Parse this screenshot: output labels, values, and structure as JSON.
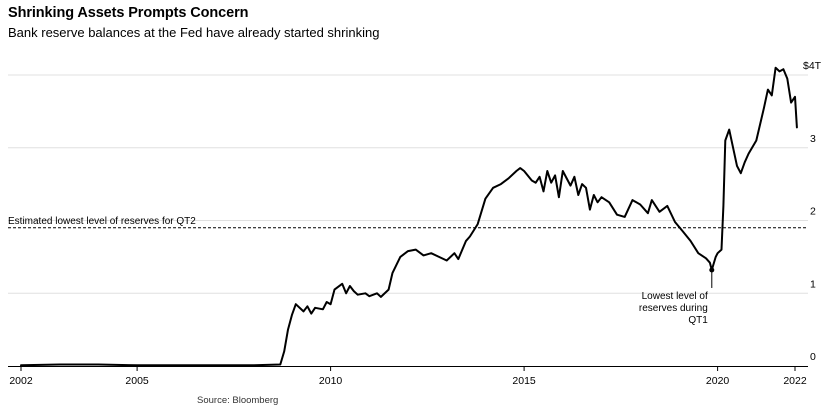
{
  "header": {
    "title": "Shrinking Assets Prompts Concern",
    "subtitle": "Bank reserve balances at the Fed have already started shrinking"
  },
  "footer": {
    "source": "Source: Bloomberg"
  },
  "colors": {
    "line": "#000000",
    "grid": "#e0e0e0",
    "axis": "#000000"
  },
  "chart_data": {
    "type": "line",
    "title": "Shrinking Assets Prompts Concern",
    "subtitle": "Bank reserve balances at the Fed have already started shrinking",
    "xlabel": "",
    "ylabel": "",
    "xlim": [
      2002,
      2022.1
    ],
    "ylim": [
      0,
      4.1
    ],
    "x_ticks": [
      2002,
      2005,
      2010,
      2015,
      2020,
      2022
    ],
    "x_tick_labels": [
      "2002",
      "2005",
      "2010",
      "2015",
      "2020",
      "2022"
    ],
    "y_ticks": [
      0,
      1,
      2,
      3,
      4
    ],
    "y_tick_labels": [
      "0",
      "1",
      "2",
      "3",
      "$4T"
    ],
    "grid": "horizontal",
    "series": [
      {
        "values": [
          [
            2002.0,
            0.01
          ],
          [
            2003.0,
            0.02
          ],
          [
            2004.0,
            0.02
          ],
          [
            2005.0,
            0.01
          ],
          [
            2006.0,
            0.01
          ],
          [
            2007.0,
            0.01
          ],
          [
            2008.0,
            0.01
          ],
          [
            2008.7,
            0.02
          ],
          [
            2008.8,
            0.2
          ],
          [
            2008.9,
            0.5
          ],
          [
            2009.0,
            0.7
          ],
          [
            2009.1,
            0.85
          ],
          [
            2009.3,
            0.75
          ],
          [
            2009.4,
            0.82
          ],
          [
            2009.5,
            0.72
          ],
          [
            2009.6,
            0.8
          ],
          [
            2009.8,
            0.78
          ],
          [
            2009.9,
            0.88
          ],
          [
            2010.0,
            0.85
          ],
          [
            2010.1,
            1.05
          ],
          [
            2010.3,
            1.13
          ],
          [
            2010.4,
            1.0
          ],
          [
            2010.5,
            1.1
          ],
          [
            2010.6,
            1.03
          ],
          [
            2010.7,
            0.98
          ],
          [
            2010.9,
            1.0
          ],
          [
            2011.0,
            0.96
          ],
          [
            2011.2,
            1.0
          ],
          [
            2011.3,
            0.95
          ],
          [
            2011.5,
            1.05
          ],
          [
            2011.6,
            1.28
          ],
          [
            2011.8,
            1.5
          ],
          [
            2012.0,
            1.58
          ],
          [
            2012.2,
            1.6
          ],
          [
            2012.4,
            1.52
          ],
          [
            2012.6,
            1.55
          ],
          [
            2012.8,
            1.5
          ],
          [
            2013.0,
            1.45
          ],
          [
            2013.2,
            1.55
          ],
          [
            2013.3,
            1.47
          ],
          [
            2013.5,
            1.72
          ],
          [
            2013.6,
            1.78
          ],
          [
            2013.8,
            1.95
          ],
          [
            2014.0,
            2.3
          ],
          [
            2014.2,
            2.45
          ],
          [
            2014.4,
            2.5
          ],
          [
            2014.6,
            2.58
          ],
          [
            2014.8,
            2.68
          ],
          [
            2014.9,
            2.72
          ],
          [
            2015.0,
            2.68
          ],
          [
            2015.2,
            2.55
          ],
          [
            2015.3,
            2.52
          ],
          [
            2015.4,
            2.6
          ],
          [
            2015.5,
            2.4
          ],
          [
            2015.6,
            2.68
          ],
          [
            2015.7,
            2.52
          ],
          [
            2015.8,
            2.62
          ],
          [
            2015.9,
            2.32
          ],
          [
            2016.0,
            2.68
          ],
          [
            2016.2,
            2.48
          ],
          [
            2016.3,
            2.6
          ],
          [
            2016.4,
            2.35
          ],
          [
            2016.5,
            2.5
          ],
          [
            2016.6,
            2.45
          ],
          [
            2016.7,
            2.15
          ],
          [
            2016.8,
            2.35
          ],
          [
            2016.9,
            2.25
          ],
          [
            2017.0,
            2.32
          ],
          [
            2017.2,
            2.25
          ],
          [
            2017.4,
            2.08
          ],
          [
            2017.6,
            2.05
          ],
          [
            2017.8,
            2.28
          ],
          [
            2018.0,
            2.22
          ],
          [
            2018.2,
            2.1
          ],
          [
            2018.3,
            2.28
          ],
          [
            2018.5,
            2.12
          ],
          [
            2018.7,
            2.2
          ],
          [
            2018.9,
            1.98
          ],
          [
            2019.1,
            1.85
          ],
          [
            2019.3,
            1.72
          ],
          [
            2019.5,
            1.55
          ],
          [
            2019.7,
            1.48
          ],
          [
            2019.8,
            1.42
          ],
          [
            2019.85,
            1.32
          ],
          [
            2019.95,
            1.5
          ],
          [
            2020.0,
            1.55
          ],
          [
            2020.1,
            1.6
          ],
          [
            2020.15,
            2.2
          ],
          [
            2020.2,
            3.1
          ],
          [
            2020.3,
            3.25
          ],
          [
            2020.4,
            3.0
          ],
          [
            2020.5,
            2.75
          ],
          [
            2020.6,
            2.65
          ],
          [
            2020.7,
            2.8
          ],
          [
            2020.8,
            2.92
          ],
          [
            2021.0,
            3.1
          ],
          [
            2021.2,
            3.55
          ],
          [
            2021.3,
            3.8
          ],
          [
            2021.4,
            3.72
          ],
          [
            2021.5,
            4.1
          ],
          [
            2021.6,
            4.05
          ],
          [
            2021.7,
            4.08
          ],
          [
            2021.8,
            3.95
          ],
          [
            2021.9,
            3.62
          ],
          [
            2022.0,
            3.7
          ],
          [
            2022.05,
            3.28
          ]
        ]
      }
    ],
    "reference_lines": [
      {
        "y": 1.9,
        "style": "dashed",
        "label": "Estimated lowest level of reserves for QT2"
      }
    ],
    "annotations": [
      {
        "x": 2019.85,
        "y": 1.32,
        "text_lines": [
          "Lowest level of",
          "reserves during",
          "QT1"
        ]
      }
    ]
  }
}
